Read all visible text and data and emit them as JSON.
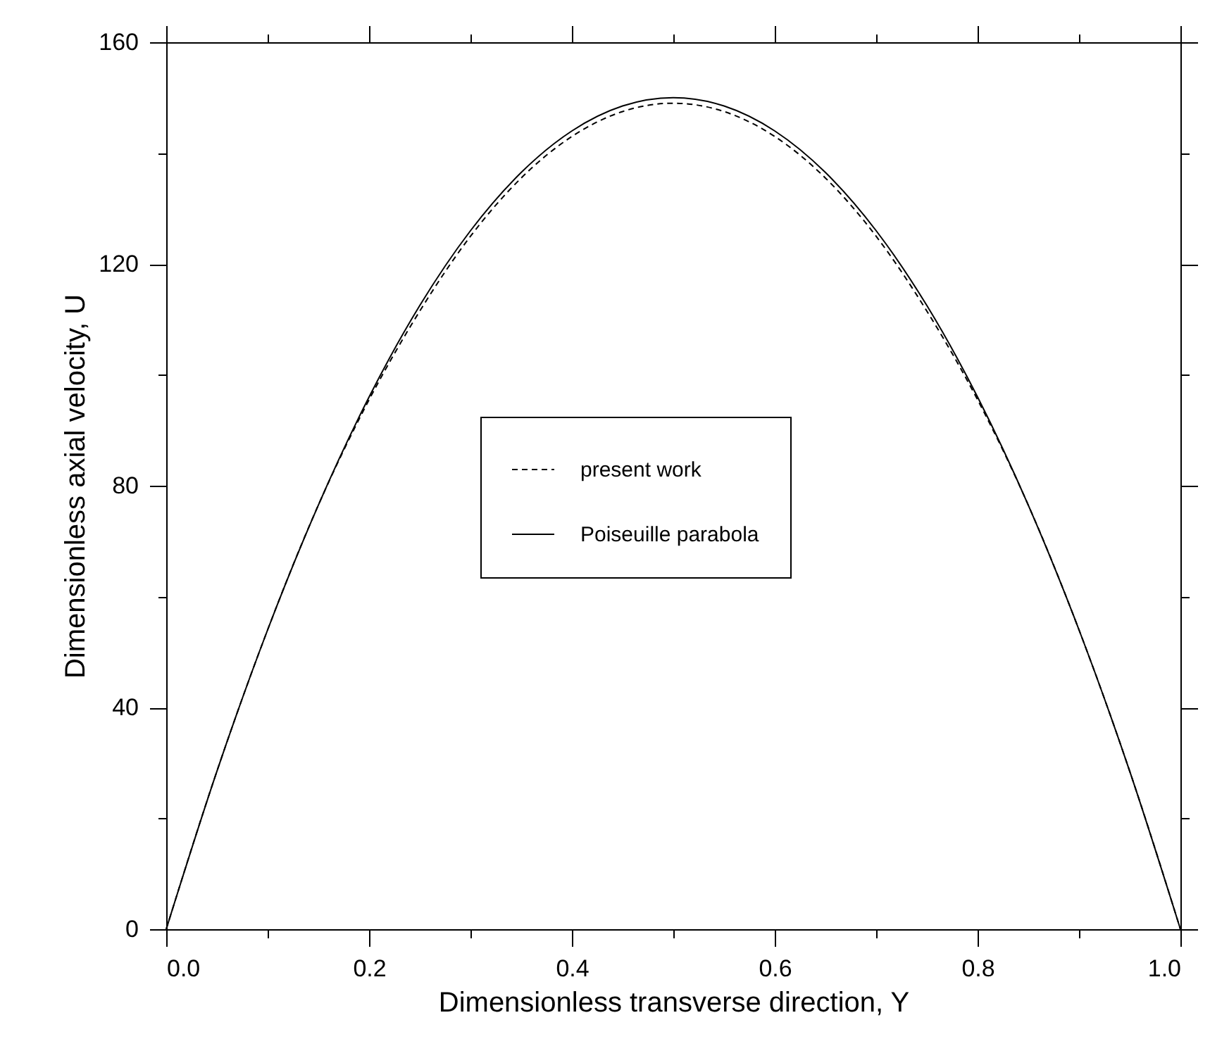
{
  "chart_data": {
    "type": "line",
    "xlabel": "Dimensionless transverse direction, Y",
    "ylabel": "Dimensionless axial velocity, U",
    "x": [
      0,
      0.05,
      0.1,
      0.15,
      0.2,
      0.25,
      0.3,
      0.35,
      0.4,
      0.45,
      0.5,
      0.55,
      0.6,
      0.65,
      0.7,
      0.75,
      0.8,
      0.85,
      0.9,
      0.95,
      1.0
    ],
    "series": [
      {
        "name": "present work",
        "color": "#000000",
        "line_style": "dashed",
        "values": [
          0,
          28.5,
          54,
          76.5,
          95.5,
          111.5,
          125,
          135.5,
          143,
          147.5,
          149,
          147.5,
          143,
          135.5,
          125,
          111.5,
          95.5,
          76.5,
          54,
          28.5,
          0
        ]
      },
      {
        "name": "Poiseuille parabola",
        "color": "#000000",
        "line_style": "solid",
        "values": [
          0,
          28.5,
          54,
          76.5,
          96,
          112.5,
          126,
          136.5,
          144,
          148.5,
          150,
          148.5,
          144,
          136.5,
          126,
          112.5,
          96,
          76.5,
          54,
          28.5,
          0
        ]
      }
    ],
    "xlim": [
      0,
      1.0
    ],
    "xticks": [
      {
        "value": 0,
        "label": "0.0"
      },
      {
        "value": 0.1,
        "label": null
      },
      0.2,
      {
        "value": 0.3,
        "label": null
      },
      0.4,
      {
        "value": 0.5,
        "label": null
      },
      0.6,
      {
        "value": 0.7,
        "label": null
      },
      0.8,
      {
        "value": 0.9,
        "label": null
      },
      {
        "value": 1.0,
        "label": "1.0"
      }
    ],
    "ylim": [
      0,
      160
    ],
    "yticks": [
      0,
      {
        "value": 20,
        "label": null
      },
      40,
      {
        "value": 60,
        "label": null
      },
      80,
      {
        "value": 100,
        "label": null
      },
      120,
      {
        "value": 140,
        "label": null
      },
      160
    ],
    "legend": "center",
    "marker": "none"
  }
}
